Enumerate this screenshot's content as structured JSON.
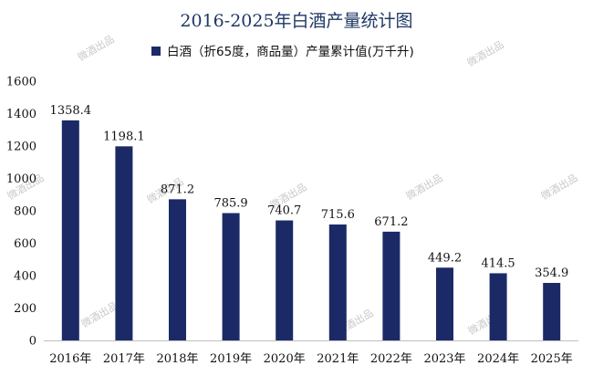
{
  "chart_data": {
    "type": "bar",
    "title": "2016-2025年白酒产量统计图",
    "categories": [
      "2016年",
      "2017年",
      "2018年",
      "2019年",
      "2020年",
      "2021年",
      "2022年",
      "2023年",
      "2024年",
      "2025年"
    ],
    "series": [
      {
        "name": "白酒（折65度，商品量）产量累计值(万千升)",
        "values": [
          1358.4,
          1198.1,
          871.2,
          785.9,
          740.7,
          715.6,
          671.2,
          449.2,
          414.5,
          354.9
        ]
      }
    ],
    "data_labels": [
      "1358.4",
      "1198.1",
      "871.2",
      "785.9",
      "740.7",
      "715.6",
      "671.2",
      "449.2",
      "414.5",
      "354.9"
    ],
    "y_ticks": [
      "0",
      "200",
      "400",
      "600",
      "800",
      "1000",
      "1200",
      "1400",
      "1600"
    ],
    "ylim": [
      0,
      1600
    ],
    "xlabel": "",
    "ylabel": "",
    "legend_position": "top-center",
    "grid": false,
    "colors": {
      "bar": "#1b2a66",
      "title": "#1f3864",
      "axis": "#bfbfbf"
    }
  },
  "watermark": "微酒出品"
}
